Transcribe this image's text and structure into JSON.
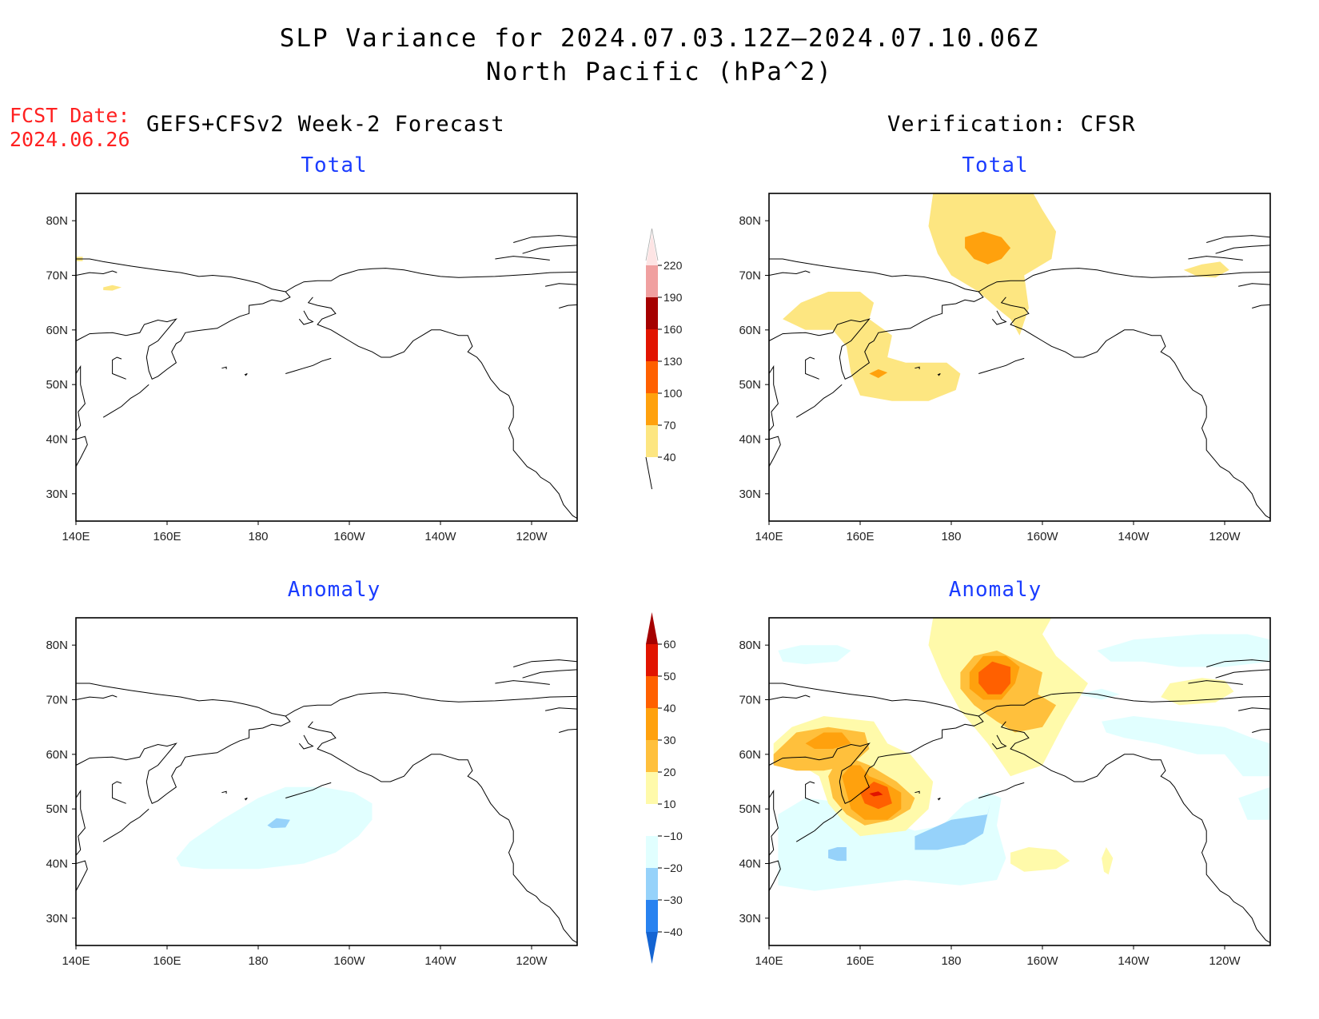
{
  "title_line1": "SLP Variance for 2024.07.03.12Z–2024.07.10.06Z",
  "title_line2": "North Pacific (hPa^2)",
  "fcst_label": "FCST Date:",
  "fcst_date": "2024.06.26",
  "left_heading": "GEFS+CFSv2 Week-2 Forecast",
  "right_heading": "Verification: CFSR",
  "colors": {
    "total_scale": [
      "#fde681",
      "#ffa10d",
      "#ff6000",
      "#e11400",
      "#a50000",
      "#f0a0a0",
      "#fde4e4"
    ],
    "anomaly_scale": [
      "#1464d2",
      "#2882f0",
      "#96d2fa",
      "#e1ffff",
      "#ffffff",
      "#fffaaa",
      "#ffc03c",
      "#ffa10d",
      "#ff6000",
      "#e11400",
      "#a50000"
    ]
  },
  "chart_data": {
    "type": "map-contour",
    "region": "North Pacific",
    "projection": "lat-lon",
    "lon_range": [
      "140E",
      "110W"
    ],
    "lat_range": [
      25,
      85
    ],
    "x_ticks": [
      "140E",
      "160E",
      "180",
      "160W",
      "140W",
      "120W"
    ],
    "y_ticks": [
      "80N",
      "70N",
      "60N",
      "50N",
      "40N",
      "30N"
    ],
    "panels": [
      {
        "id": "forecast_total",
        "title": "Total",
        "source": "GEFS+CFSv2 Week-2 Forecast",
        "colorbar": "total",
        "shaded_regions": [
          {
            "level": 40,
            "center_lon": 140.5,
            "center_lat": 73,
            "note": "tiny spot at left edge"
          },
          {
            "level": 40,
            "center_lon": 148,
            "center_lat": 67.5,
            "note": "small patch"
          }
        ]
      },
      {
        "id": "verification_total",
        "title": "Total",
        "source": "Verification: CFSR",
        "colorbar": "total",
        "shaded_regions": [
          {
            "level": 40,
            "center_lon": 185,
            "center_lat": 72,
            "note": "Arctic/Bering large region"
          },
          {
            "level": 70,
            "center_lon": 187,
            "center_lat": 76
          },
          {
            "level": 40,
            "center_lon": 165,
            "center_lat": 52,
            "note": "Kamchatka / NW Pacific"
          },
          {
            "level": 70,
            "center_lon": 164,
            "center_lat": 52
          }
        ]
      },
      {
        "id": "forecast_anomaly",
        "title": "Anomaly",
        "source": "GEFS+CFSv2 Week-2 Forecast",
        "colorbar": "anomaly",
        "shaded_regions": [
          {
            "level": -10,
            "center_lon": 180,
            "center_lat": 46,
            "note": "broad negative band"
          },
          {
            "level": -20,
            "center_lon": 185,
            "center_lat": 47.5
          }
        ]
      },
      {
        "id": "verification_anomaly",
        "title": "Anomaly",
        "source": "Verification: CFSR",
        "colorbar": "anomaly",
        "shaded_regions": [
          {
            "level": 10,
            "center_lon": 190,
            "center_lat": 75
          },
          {
            "level": 40,
            "center_lon": 188,
            "center_lat": 73
          },
          {
            "level": 10,
            "center_lon": 155,
            "center_lat": 57
          },
          {
            "level": 30,
            "center_lon": 156,
            "center_lat": 61
          },
          {
            "level": 50,
            "center_lon": 164,
            "center_lat": 53
          },
          {
            "level": -10,
            "center_lon": 175,
            "center_lat": 42
          },
          {
            "level": -20,
            "center_lon": 178,
            "center_lat": 45
          },
          {
            "level": 10,
            "center_lon": 226,
            "center_lat": 71
          },
          {
            "level": 10,
            "center_lon": 201,
            "center_lat": 41
          }
        ]
      }
    ],
    "colorbars": {
      "total": {
        "levels": [
          40,
          70,
          100,
          130,
          160,
          190,
          220
        ]
      },
      "anomaly": {
        "levels": [
          -40,
          -30,
          -20,
          -10,
          10,
          20,
          30,
          40,
          50,
          60
        ]
      }
    }
  }
}
